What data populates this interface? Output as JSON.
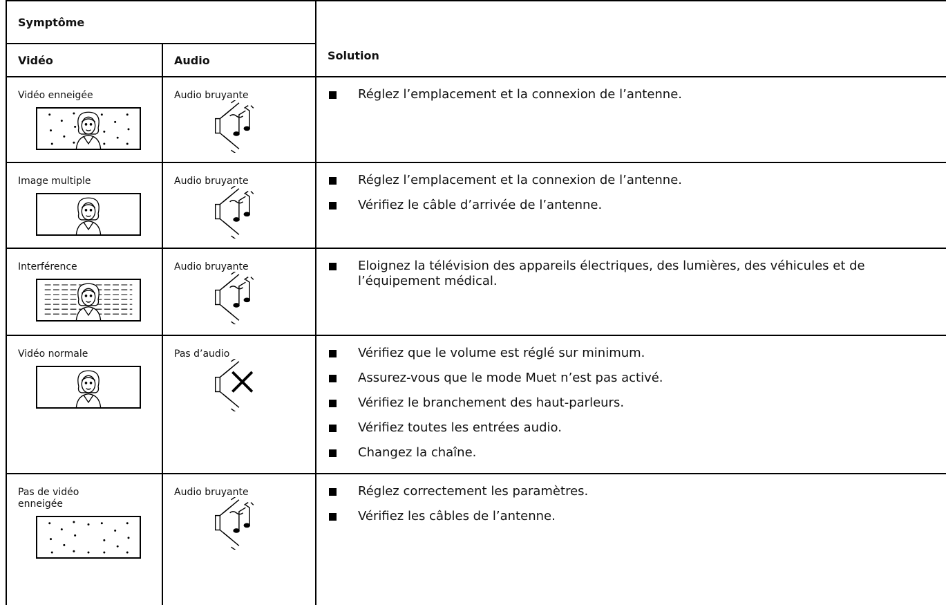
{
  "header": {
    "symptom": "Symptôme",
    "video": "Vidéo",
    "audio": "Audio",
    "solution": "Solution"
  },
  "rows": [
    {
      "video": "Vidéo enneigée",
      "audio": "Audio bruyante",
      "solutions": [
        "Réglez l’emplacement et la connexion de l’antenne."
      ]
    },
    {
      "video": "Image multiple",
      "audio": "Audio bruyante",
      "solutions": [
        "Réglez l’emplacement et la connexion de l’antenne.",
        "Vérifiez le câble d’arrivée de l’antenne."
      ]
    },
    {
      "video": "Interférence",
      "audio": "Audio bruyante",
      "solutions": [
        "Eloignez la télévision des appareils électriques, des lumières, des véhicules et de l’équipement médical."
      ]
    },
    {
      "video": "Vidéo normale",
      "audio": "Pas d’audio",
      "solutions": [
        "Vérifiez que le volume est réglé sur minimum.",
        "Assurez-vous que le mode Muet n’est pas activé.",
        "Vérifiez le branchement des haut-parleurs.",
        "Vérifiez toutes les entrées audio.",
        "Changez la chaîne."
      ]
    },
    {
      "video": "Pas de vidéo enneigée",
      "audio": "Audio bruyante",
      "solutions": [
        "Réglez correctement les paramètres.",
        "Vérifiez les câbles de l’antenne."
      ]
    }
  ]
}
